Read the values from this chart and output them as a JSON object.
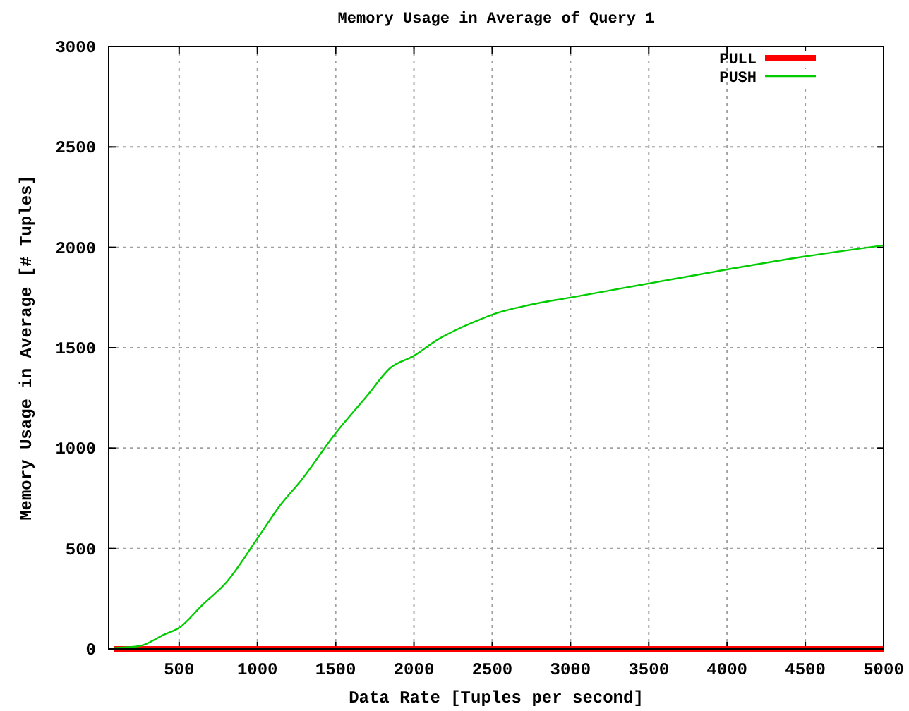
{
  "chart_data": {
    "type": "line",
    "title": "Memory Usage in Average of Query 1",
    "xlabel": "Data Rate [Tuples per second]",
    "ylabel": "Memory Usage in Average [# Tuples]",
    "xlim": [
      50,
      5000
    ],
    "xticks": [
      500,
      1000,
      1500,
      2000,
      2500,
      3000,
      3500,
      4000,
      4500,
      5000
    ],
    "ylim": [
      0,
      3000
    ],
    "yticks": [
      0,
      500,
      1000,
      1500,
      2000,
      2500,
      3000
    ],
    "grid": true,
    "legend": "top right",
    "line_style": "solid",
    "series": [
      {
        "name": "PULL",
        "color": "#ff0000",
        "x": [
          85,
          5000
        ],
        "values": [
          0,
          0
        ]
      },
      {
        "name": "PUSH",
        "color": "#00cc00",
        "x": [
          85,
          250,
          400,
          500,
          650,
          800,
          1000,
          1150,
          1280,
          1500,
          1700,
          1850,
          2000,
          2150,
          2300,
          2420,
          2500,
          2750,
          3000,
          3250,
          3500,
          4000,
          4500,
          5000
        ],
        "values": [
          5,
          15,
          70,
          105,
          220,
          330,
          550,
          720,
          840,
          1075,
          1260,
          1400,
          1460,
          1540,
          1600,
          1640,
          1665,
          1715,
          1750,
          1785,
          1820,
          1890,
          1955,
          2010
        ]
      }
    ]
  }
}
